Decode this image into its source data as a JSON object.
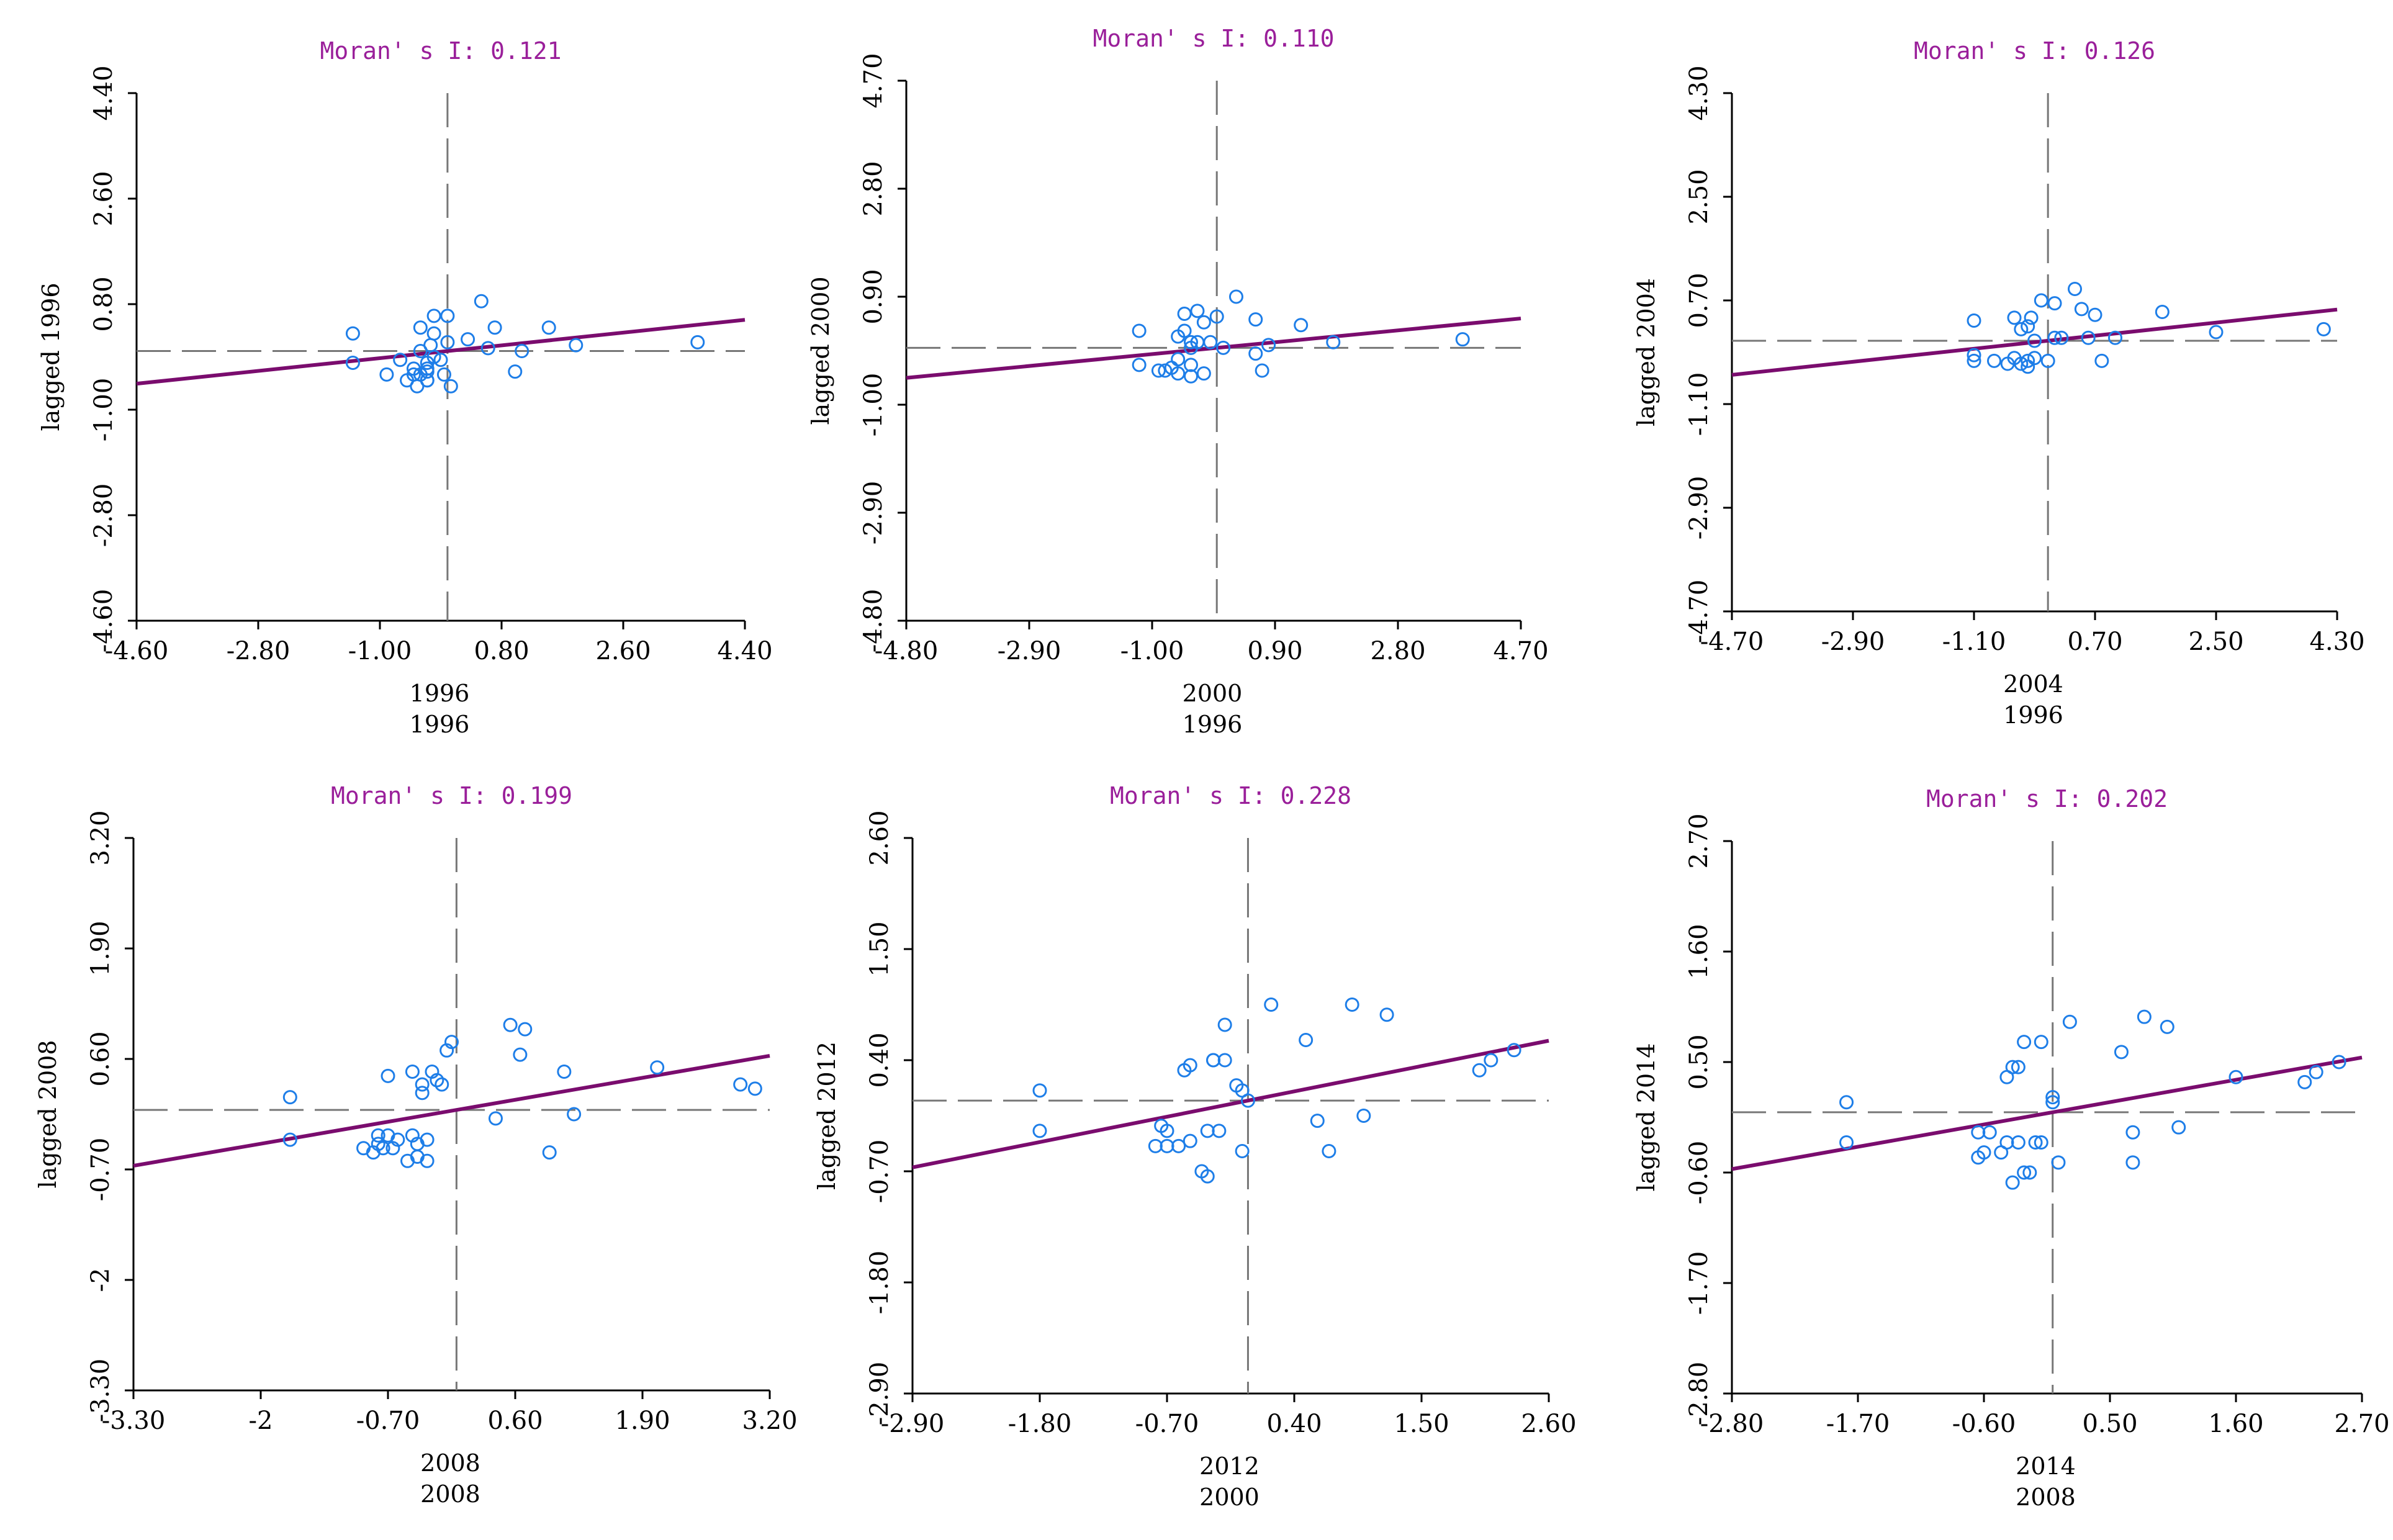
{
  "colors": {
    "title": "#9a1f9a",
    "regression": "#7a0c6e",
    "points": "#1e7ee8",
    "dash": "#777777",
    "axis": "#000000"
  },
  "chart_data": [
    {
      "type": "scatter",
      "title": "Moran' s I: 0.121",
      "xlabel": "1996",
      "xlabel2": "1996",
      "ylabel": "lagged 1996",
      "xlim": [
        -4.6,
        4.4
      ],
      "ylim": [
        -4.6,
        4.4
      ],
      "xticks": [
        -4.6,
        -2.8,
        -1.0,
        0.8,
        2.6,
        4.4
      ],
      "xtick_labels": [
        "-4.60",
        "-2.80",
        "-1.00",
        "0.80",
        "2.60",
        "4.40"
      ],
      "yticks": [
        -4.6,
        -2.8,
        -1.0,
        0.8,
        2.6,
        4.4
      ],
      "ytick_labels": [
        "-4.60",
        "-2.80",
        "-1.00",
        "0.80",
        "2.60",
        "4.40"
      ],
      "slope": 0.121,
      "intercept": 0.0,
      "x": [
        -1.4,
        -1.4,
        -0.9,
        -0.7,
        -0.6,
        -0.5,
        -0.5,
        -0.45,
        -0.4,
        -0.4,
        -0.4,
        -0.3,
        -0.3,
        -0.3,
        -0.3,
        -0.3,
        -0.25,
        -0.2,
        -0.2,
        -0.2,
        -0.1,
        -0.05,
        0.0,
        0.0,
        0.05,
        0.3,
        0.5,
        0.6,
        0.7,
        1.0,
        1.1,
        1.5,
        1.9,
        3.7
      ],
      "y": [
        0.3,
        -0.2,
        -0.4,
        -0.15,
        -0.5,
        -0.3,
        -0.4,
        -0.6,
        -0.4,
        0.4,
        0.0,
        -0.3,
        -0.5,
        -0.5,
        -0.35,
        -0.2,
        0.1,
        0.3,
        -0.1,
        0.6,
        -0.15,
        -0.4,
        0.6,
        0.15,
        -0.6,
        0.2,
        0.85,
        0.05,
        0.4,
        -0.35,
        0.0,
        0.4,
        0.1,
        0.15
      ]
    },
    {
      "type": "scatter",
      "title": "Moran' s I: 0.110",
      "xlabel": "2000",
      "xlabel2": "1996",
      "ylabel": "lagged 2000",
      "xlim": [
        -4.8,
        4.7
      ],
      "ylim": [
        -4.8,
        4.7
      ],
      "xticks": [
        -4.8,
        -2.9,
        -1.0,
        0.9,
        2.8,
        4.7
      ],
      "xtick_labels": [
        "-4.80",
        "-2.90",
        "-1.00",
        "0.90",
        "2.80",
        "4.70"
      ],
      "yticks": [
        -4.8,
        -2.9,
        -1.0,
        0.9,
        2.8,
        4.7
      ],
      "ytick_labels": [
        "-4.80",
        "-2.90",
        "-1.00",
        "0.90",
        "2.80",
        "4.70"
      ],
      "slope": 0.11,
      "intercept": 0.0,
      "x": [
        -1.2,
        -1.2,
        -0.9,
        -0.8,
        -0.7,
        -0.6,
        -0.6,
        -0.6,
        -0.5,
        -0.5,
        -0.4,
        -0.4,
        -0.4,
        -0.4,
        -0.3,
        -0.3,
        -0.2,
        -0.2,
        -0.1,
        0.0,
        0.1,
        0.3,
        0.6,
        0.6,
        0.7,
        0.8,
        1.3,
        1.8,
        3.8
      ],
      "y": [
        0.3,
        -0.3,
        -0.4,
        -0.4,
        -0.35,
        -0.45,
        0.2,
        -0.2,
        0.3,
        0.6,
        -0.5,
        0.0,
        0.1,
        -0.3,
        0.65,
        0.1,
        -0.45,
        0.45,
        0.1,
        0.55,
        0.0,
        0.9,
        0.5,
        -0.1,
        -0.4,
        0.05,
        0.4,
        0.1,
        0.15
      ]
    },
    {
      "type": "scatter",
      "title": "Moran' s I: 0.126",
      "xlabel": "2004",
      "xlabel2": "1996",
      "ylabel": "lagged 2004",
      "xlim": [
        -4.7,
        4.3
      ],
      "ylim": [
        -4.7,
        4.3
      ],
      "xticks": [
        -4.7,
        -2.9,
        -1.1,
        0.7,
        2.5,
        4.3
      ],
      "xtick_labels": [
        "-4.70",
        "-2.90",
        "-1.10",
        "0.70",
        "2.50",
        "4.30"
      ],
      "yticks": [
        -4.7,
        -2.9,
        -1.1,
        0.7,
        2.5,
        4.3
      ],
      "ytick_labels": [
        "-4.70",
        "-2.90",
        "-1.10",
        "0.70",
        "2.50",
        "4.30"
      ],
      "slope": 0.126,
      "intercept": 0.0,
      "x": [
        -1.1,
        -1.1,
        -1.1,
        -0.8,
        -0.6,
        -0.5,
        -0.5,
        -0.4,
        -0.4,
        -0.3,
        -0.3,
        -0.3,
        -0.25,
        -0.2,
        -0.2,
        -0.1,
        0.0,
        0.1,
        0.1,
        0.2,
        0.4,
        0.5,
        0.6,
        0.7,
        0.8,
        1.0,
        1.7,
        2.5,
        4.1
      ],
      "y": [
        0.35,
        -0.35,
        -0.25,
        -0.35,
        -0.4,
        0.4,
        -0.3,
        0.2,
        -0.4,
        0.25,
        -0.35,
        -0.45,
        0.4,
        -0.3,
        0.0,
        0.7,
        -0.35,
        0.65,
        0.05,
        0.05,
        0.9,
        0.55,
        0.05,
        0.45,
        -0.35,
        0.05,
        0.5,
        0.15,
        0.2
      ]
    },
    {
      "type": "scatter",
      "title": "Moran' s I: 0.199",
      "xlabel": "2008",
      "xlabel2": "2008",
      "ylabel": "lagged 2008",
      "xlim": [
        -3.3,
        3.2
      ],
      "ylim": [
        -3.3,
        3.2
      ],
      "xticks": [
        -3.3,
        -2.0,
        -0.7,
        0.6,
        1.9,
        3.2
      ],
      "xtick_labels": [
        "-3.30",
        "-2",
        "-0.70",
        "0.60",
        "1.90",
        "3.20"
      ],
      "yticks": [
        -3.3,
        -2.0,
        -0.7,
        0.6,
        1.9,
        3.2
      ],
      "ytick_labels": [
        "-3.30",
        "-2",
        "-0.70",
        "0.60",
        "1.90",
        "3.20"
      ],
      "slope": 0.199,
      "intercept": 0.0,
      "x": [
        -1.7,
        -1.7,
        -0.95,
        -0.85,
        -0.8,
        -0.8,
        -0.75,
        -0.7,
        -0.7,
        -0.65,
        -0.6,
        -0.5,
        -0.45,
        -0.45,
        -0.4,
        -0.4,
        -0.35,
        -0.35,
        -0.3,
        -0.3,
        -0.25,
        -0.2,
        -0.15,
        -0.1,
        -0.05,
        0.4,
        0.55,
        0.65,
        0.7,
        0.95,
        1.1,
        1.2,
        2.05,
        2.9,
        3.05
      ],
      "y": [
        0.15,
        -0.35,
        -0.45,
        -0.5,
        -0.3,
        -0.4,
        -0.45,
        -0.3,
        0.4,
        -0.45,
        -0.35,
        -0.6,
        -0.3,
        0.45,
        -0.55,
        -0.4,
        0.2,
        0.3,
        -0.6,
        -0.35,
        0.45,
        0.35,
        0.3,
        0.7,
        0.8,
        -0.1,
        1.0,
        0.65,
        0.95,
        -0.5,
        0.45,
        -0.05,
        0.5,
        0.3,
        0.25
      ]
    },
    {
      "type": "scatter",
      "title": "Moran' s I: 0.228",
      "xlabel": "2012",
      "xlabel2": "2000",
      "ylabel": "lagged 2012",
      "xlim": [
        -2.9,
        2.6
      ],
      "ylim": [
        -2.9,
        2.6
      ],
      "xticks": [
        -2.9,
        -1.8,
        -0.7,
        0.4,
        1.5,
        2.6
      ],
      "xtick_labels": [
        "-2.90",
        "-1.80",
        "-0.70",
        "0.40",
        "1.50",
        "2.60"
      ],
      "yticks": [
        -2.9,
        -1.8,
        -0.7,
        0.4,
        1.5,
        2.6
      ],
      "ytick_labels": [
        "-2.90",
        "-1.80",
        "-0.70",
        "0.40",
        "1.50",
        "2.60"
      ],
      "slope": 0.228,
      "intercept": 0.0,
      "x": [
        -1.8,
        -1.8,
        -0.8,
        -0.75,
        -0.7,
        -0.7,
        -0.6,
        -0.55,
        -0.5,
        -0.5,
        -0.4,
        -0.35,
        -0.35,
        -0.3,
        -0.3,
        -0.25,
        -0.2,
        -0.2,
        -0.1,
        -0.05,
        -0.05,
        0.0,
        0.2,
        0.5,
        0.6,
        0.7,
        0.9,
        1.0,
        1.2,
        2.0,
        2.1,
        2.3
      ],
      "y": [
        0.1,
        -0.3,
        -0.45,
        -0.25,
        -0.45,
        -0.3,
        -0.45,
        0.3,
        -0.4,
        0.35,
        -0.7,
        -0.3,
        -0.75,
        0.4,
        0.4,
        -0.3,
        0.75,
        0.4,
        0.15,
        0.1,
        -0.5,
        0.0,
        0.95,
        0.6,
        -0.2,
        -0.5,
        0.95,
        -0.15,
        0.85,
        0.3,
        0.4,
        0.5
      ]
    },
    {
      "type": "scatter",
      "title": "Moran' s I: 0.202",
      "xlabel": "2014",
      "xlabel2": "2008",
      "ylabel": "lagged 2014",
      "xlim": [
        -2.8,
        2.7
      ],
      "ylim": [
        -2.8,
        2.7
      ],
      "xticks": [
        -2.8,
        -1.7,
        -0.6,
        0.5,
        1.6,
        2.7
      ],
      "xtick_labels": [
        "-2.80",
        "-1.70",
        "-0.60",
        "0.50",
        "1.60",
        "2.70"
      ],
      "yticks": [
        -2.8,
        -1.7,
        -0.6,
        0.5,
        1.6,
        2.7
      ],
      "ytick_labels": [
        "-2.80",
        "-1.70",
        "-0.60",
        "0.50",
        "1.60",
        "2.70"
      ],
      "slope": 0.202,
      "intercept": 0.0,
      "x": [
        -1.8,
        -1.8,
        -0.65,
        -0.65,
        -0.6,
        -0.55,
        -0.45,
        -0.4,
        -0.4,
        -0.35,
        -0.35,
        -0.3,
        -0.3,
        -0.25,
        -0.25,
        -0.2,
        -0.15,
        -0.1,
        -0.1,
        0.0,
        0.0,
        0.05,
        0.15,
        0.6,
        0.7,
        0.7,
        0.8,
        1.0,
        1.1,
        1.6,
        2.2,
        2.3,
        2.5
      ],
      "y": [
        0.1,
        -0.3,
        -0.45,
        -0.2,
        -0.4,
        -0.2,
        -0.4,
        0.35,
        -0.3,
        0.45,
        -0.7,
        0.45,
        -0.3,
        -0.6,
        0.7,
        -0.6,
        -0.3,
        -0.3,
        0.7,
        0.15,
        0.1,
        -0.5,
        0.9,
        0.6,
        -0.2,
        -0.5,
        0.95,
        0.85,
        -0.15,
        0.35,
        0.3,
        0.4,
        0.5
      ]
    }
  ]
}
